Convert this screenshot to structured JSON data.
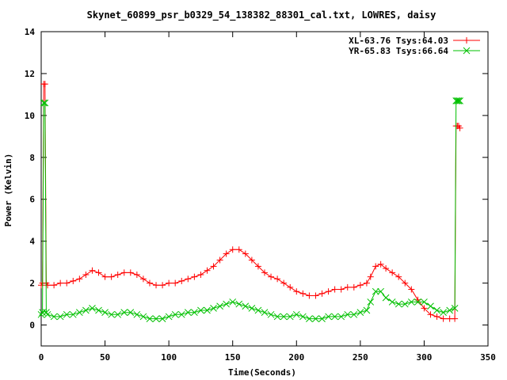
{
  "chart_data": {
    "type": "line",
    "title": "Skynet_60899_psr_b0329_54_138382_88301_cal.txt, LOWRES, daisy",
    "xlabel": "Time(Seconds)",
    "ylabel": "Power (Kelvin)",
    "xlim": [
      0,
      350
    ],
    "ylim": [
      -1,
      14
    ],
    "xticks": [
      0,
      50,
      100,
      150,
      200,
      250,
      300,
      350
    ],
    "yticks": [
      0,
      2,
      4,
      6,
      8,
      10,
      12,
      14
    ],
    "legend_position": "top-right",
    "series": [
      {
        "name": "XL-63.76 Tsys:64.03",
        "color": "#ff0000",
        "marker": "plus",
        "x": [
          0,
          1,
          2,
          3,
          4,
          5,
          10,
          15,
          20,
          25,
          30,
          35,
          40,
          45,
          50,
          55,
          60,
          65,
          70,
          75,
          80,
          85,
          90,
          95,
          100,
          105,
          110,
          115,
          120,
          125,
          130,
          135,
          140,
          145,
          150,
          155,
          160,
          165,
          170,
          175,
          180,
          185,
          190,
          195,
          200,
          205,
          210,
          215,
          220,
          225,
          230,
          235,
          240,
          245,
          250,
          255,
          258,
          262,
          266,
          270,
          275,
          280,
          285,
          290,
          295,
          300,
          305,
          310,
          315,
          320,
          324,
          325,
          326,
          327,
          328
        ],
        "y": [
          1.9,
          2.0,
          11.5,
          11.5,
          2.0,
          1.9,
          1.9,
          2.0,
          2.0,
          2.1,
          2.2,
          2.4,
          2.6,
          2.5,
          2.3,
          2.3,
          2.4,
          2.5,
          2.5,
          2.4,
          2.2,
          2.0,
          1.9,
          1.9,
          2.0,
          2.0,
          2.1,
          2.2,
          2.3,
          2.4,
          2.6,
          2.8,
          3.1,
          3.4,
          3.6,
          3.6,
          3.4,
          3.1,
          2.8,
          2.5,
          2.3,
          2.2,
          2.0,
          1.8,
          1.6,
          1.5,
          1.4,
          1.4,
          1.5,
          1.6,
          1.7,
          1.7,
          1.8,
          1.8,
          1.9,
          2.0,
          2.3,
          2.8,
          2.9,
          2.7,
          2.5,
          2.3,
          2.0,
          1.7,
          1.2,
          0.8,
          0.5,
          0.4,
          0.3,
          0.3,
          0.3,
          9.5,
          9.5,
          9.5,
          9.4
        ]
      },
      {
        "name": "YR-65.83 Tsys:66.64",
        "color": "#00c000",
        "marker": "cross",
        "x": [
          0,
          1,
          2,
          3,
          4,
          5,
          10,
          15,
          20,
          25,
          30,
          35,
          40,
          45,
          50,
          55,
          60,
          65,
          70,
          75,
          80,
          85,
          90,
          95,
          100,
          105,
          110,
          115,
          120,
          125,
          130,
          135,
          140,
          145,
          150,
          155,
          160,
          165,
          170,
          175,
          180,
          185,
          190,
          195,
          200,
          205,
          210,
          215,
          220,
          225,
          230,
          235,
          240,
          245,
          250,
          255,
          258,
          262,
          266,
          270,
          275,
          280,
          285,
          290,
          295,
          300,
          305,
          310,
          315,
          320,
          324,
          325,
          326,
          327,
          328
        ],
        "y": [
          0.5,
          0.6,
          10.6,
          10.6,
          0.6,
          0.5,
          0.4,
          0.4,
          0.5,
          0.5,
          0.6,
          0.7,
          0.8,
          0.7,
          0.6,
          0.5,
          0.5,
          0.6,
          0.6,
          0.5,
          0.4,
          0.3,
          0.3,
          0.3,
          0.4,
          0.5,
          0.5,
          0.6,
          0.6,
          0.7,
          0.7,
          0.8,
          0.9,
          1.0,
          1.1,
          1.0,
          0.9,
          0.8,
          0.7,
          0.6,
          0.5,
          0.4,
          0.4,
          0.4,
          0.5,
          0.4,
          0.3,
          0.3,
          0.3,
          0.4,
          0.4,
          0.4,
          0.5,
          0.5,
          0.6,
          0.7,
          1.1,
          1.6,
          1.6,
          1.3,
          1.1,
          1.0,
          1.0,
          1.1,
          1.1,
          1.1,
          0.9,
          0.7,
          0.6,
          0.7,
          0.8,
          10.7,
          10.7,
          10.7,
          10.7
        ]
      }
    ]
  }
}
